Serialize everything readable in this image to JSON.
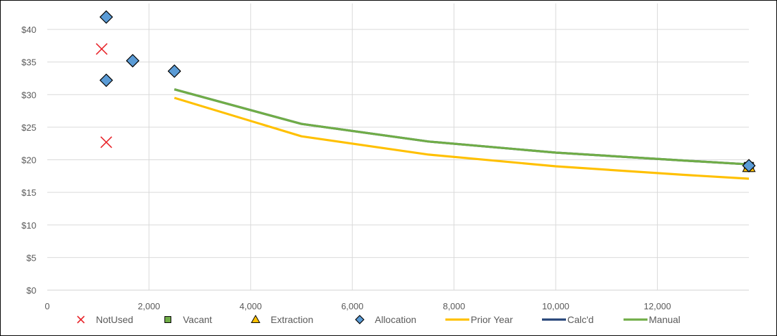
{
  "colors": {
    "notused": "#e8242a",
    "vacant": "#70ad47",
    "extraction": "#ffc000",
    "allocation": "#5b9bd5",
    "prior_year": "#ffc000",
    "calcd": "#264478",
    "manual": "#70ad47",
    "grid": "#d9d9d9",
    "tick_text": "#595959",
    "border": "#000000"
  },
  "chart_data": {
    "type": "scatter",
    "title": "",
    "xlabel": "",
    "ylabel": "",
    "xlim": [
      0,
      13800
    ],
    "ylim": [
      0,
      40
    ],
    "x_ticks": [
      0,
      2000,
      4000,
      6000,
      8000,
      10000,
      12000
    ],
    "x_tick_labels": [
      "0",
      "2,000",
      "4,000",
      "6,000",
      "8,000",
      "10,000",
      "12,000"
    ],
    "y_ticks": [
      0,
      5,
      10,
      15,
      20,
      25,
      30,
      35,
      40
    ],
    "y_tick_labels": [
      "$0",
      "$5",
      "$10",
      "$15",
      "$20",
      "$25",
      "$30",
      "$35",
      "$40"
    ],
    "grid": true,
    "legend_position": "bottom",
    "series": [
      {
        "name": "NotUsed",
        "kind": "markers",
        "marker": "x",
        "color": "#e8242a",
        "points": [
          [
            1070,
            37.0
          ],
          [
            1160,
            22.7
          ]
        ]
      },
      {
        "name": "Vacant",
        "kind": "markers",
        "marker": "square",
        "color": "#70ad47",
        "points": [
          [
            13800,
            18.9
          ]
        ]
      },
      {
        "name": "Extraction",
        "kind": "markers",
        "marker": "triangle",
        "color": "#ffc000",
        "points": [
          [
            13800,
            18.9
          ]
        ]
      },
      {
        "name": "Allocation",
        "kind": "markers",
        "marker": "diamond",
        "color": "#5b9bd5",
        "points": [
          [
            1160,
            41.9
          ],
          [
            1160,
            32.2
          ],
          [
            1680,
            35.2
          ],
          [
            2500,
            33.6
          ],
          [
            13800,
            19.1
          ]
        ]
      },
      {
        "name": "Prior Year",
        "kind": "line",
        "color": "#ffc000",
        "points": [
          [
            2500,
            29.5
          ],
          [
            5000,
            23.6
          ],
          [
            7500,
            20.8
          ],
          [
            10000,
            19.0
          ],
          [
            12500,
            17.7
          ],
          [
            13800,
            17.1
          ]
        ]
      },
      {
        "name": "Calc'd",
        "kind": "line",
        "color": "#264478",
        "points": [
          [
            2500,
            30.8
          ],
          [
            5000,
            25.5
          ],
          [
            7500,
            22.8
          ],
          [
            10000,
            21.1
          ],
          [
            12500,
            19.9
          ],
          [
            13800,
            19.3
          ]
        ]
      },
      {
        "name": "Manual",
        "kind": "line",
        "color": "#70ad47",
        "points": [
          [
            2500,
            30.8
          ],
          [
            5000,
            25.5
          ],
          [
            7500,
            22.8
          ],
          [
            10000,
            21.1
          ],
          [
            12500,
            19.9
          ],
          [
            13800,
            19.3
          ]
        ]
      }
    ]
  }
}
